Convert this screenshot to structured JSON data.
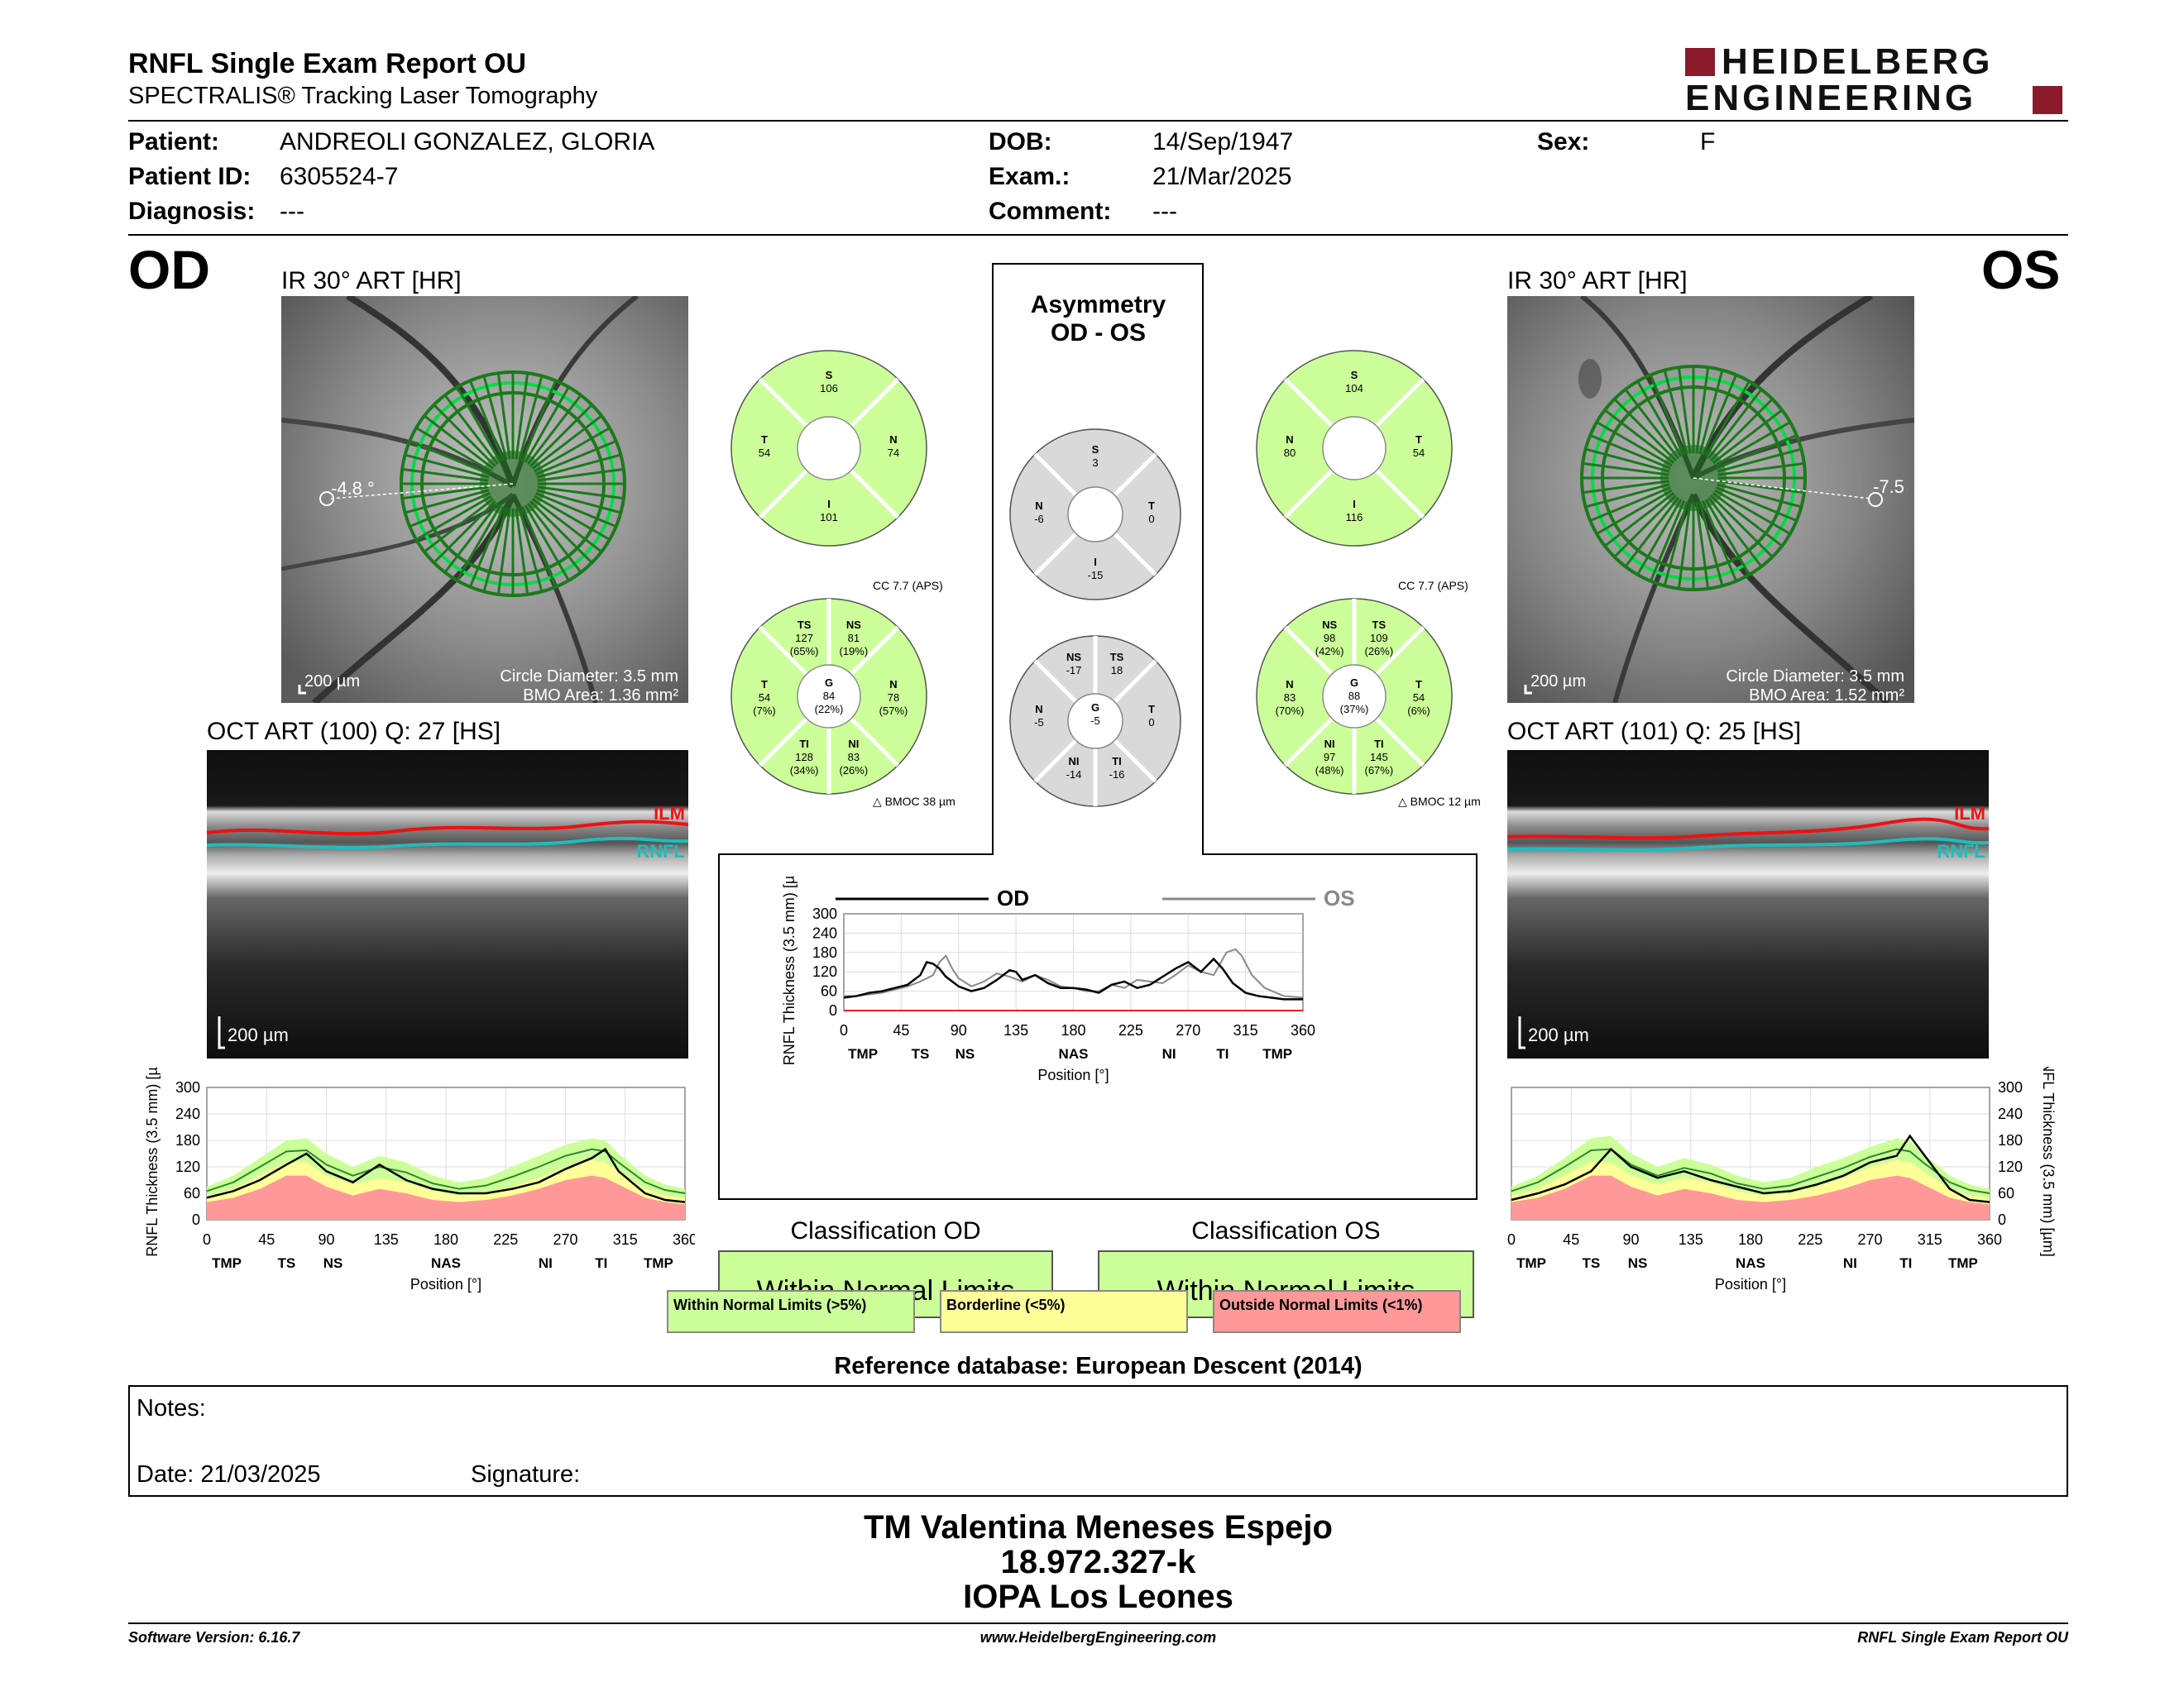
{
  "header": {
    "title": "RNFL Single Exam Report OU",
    "subtitle": "SPECTRALIS® Tracking Laser Tomography",
    "logo_line1": "HEIDELBERG",
    "logo_line2": "ENGINEERING",
    "logo_color": "#8b1a2b"
  },
  "patient": {
    "patient_label": "Patient:",
    "patient": "ANDREOLI GONZALEZ, GLORIA",
    "id_label": "Patient ID:",
    "id": "6305524-7",
    "diag_label": "Diagnosis:",
    "diag": "---",
    "dob_label": "DOB:",
    "dob": "14/Sep/1947",
    "exam_label": "Exam.:",
    "exam": "21/Mar/2025",
    "comment_label": "Comment:",
    "comment": "---",
    "sex_label": "Sex:",
    "sex": "F"
  },
  "od": {
    "eye": "OD",
    "ir_title": "IR 30° ART [HR]",
    "angle": "-4.8 °",
    "scale": "200 µm",
    "circle": "Circle Diameter: 3.5 mm",
    "bmo": "BMO Area: 1.36 mm²",
    "oct_title": "OCT ART (100) Q: 27 [HS]",
    "oct_scale": "200 µm",
    "ilm": "ILM",
    "rnfl": "RNFL",
    "cc": "CC 7.7 (APS)",
    "bmoc": "BMOC 38 µm",
    "sectors4": {
      "S": "106",
      "T": "54",
      "N": "74",
      "I": "101"
    },
    "sectors6": {
      "TS": "127",
      "TS_p": "(65%)",
      "NS": "81",
      "NS_p": "(19%)",
      "T": "54",
      "T_p": "(7%)",
      "G": "84",
      "G_p": "(22%)",
      "N": "78",
      "N_p": "(57%)",
      "TI": "128",
      "TI_p": "(34%)",
      "NI": "83",
      "NI_p": "(26%)"
    },
    "classification_title": "Classification OD",
    "classification": "Within Normal Limits"
  },
  "os": {
    "eye": "OS",
    "ir_title": "IR 30° ART [HR]",
    "angle": "-7.5",
    "scale": "200 µm",
    "circle": "Circle Diameter: 3.5 mm",
    "bmo": "BMO Area: 1.52 mm²",
    "oct_title": "OCT ART (101) Q: 25 [HS]",
    "oct_scale": "200 µm",
    "ilm": "ILM",
    "rnfl": "RNFL",
    "cc": "CC 7.7 (APS)",
    "bmoc": "BMOC 12 µm",
    "sectors4": {
      "S": "104",
      "N": "80",
      "T": "54",
      "I": "116"
    },
    "sectors6": {
      "NS": "98",
      "NS_p": "(42%)",
      "TS": "109",
      "TS_p": "(26%)",
      "N": "83",
      "N_p": "(70%)",
      "G": "88",
      "G_p": "(37%)",
      "T": "54",
      "T_p": "(6%)",
      "NI": "97",
      "NI_p": "(48%)",
      "TI": "145",
      "TI_p": "(67%)"
    },
    "classification_title": "Classification OS",
    "classification": "Within Normal Limits"
  },
  "asym": {
    "title1": "Asymmetry",
    "title2": "OD - OS",
    "sectors4": {
      "S": "3",
      "N": "-6",
      "T": "0",
      "I": "-15"
    },
    "sectors6": {
      "NS": "-17",
      "TS": "18",
      "N": "-5",
      "G": "-5",
      "T": "0",
      "NI": "-14",
      "TI": "-16"
    }
  },
  "sector_letters": {
    "S": "S",
    "T": "T",
    "N": "N",
    "I": "I",
    "TS": "TS",
    "NS": "NS",
    "G": "G",
    "TI": "TI",
    "NI": "NI"
  },
  "legend": {
    "od": "OD",
    "os": "OS",
    "wnl": "Within Normal Limits (>5%)",
    "bl": "Borderline (<5%)",
    "onl": "Outside Normal Limits (<1%)"
  },
  "colors": {
    "green": "#ccff99",
    "yellow": "#ffff99",
    "red": "#ff9999",
    "gray": "#d9d9d9",
    "fundus_ring": "#1a7a1a"
  },
  "chart_data": [
    {
      "type": "line",
      "title": "",
      "xlabel": "Position [°]",
      "ylabel": "RNFL Thickness (3.5 mm) [µm]",
      "x_ticks": [
        0,
        45,
        90,
        135,
        180,
        225,
        270,
        315,
        360
      ],
      "y_ticks": [
        0,
        60,
        120,
        180,
        240,
        300
      ],
      "xlim": [
        0,
        360
      ],
      "ylim": [
        0,
        300
      ],
      "sector_labels": [
        {
          "x": 15,
          "label": "TMP"
        },
        {
          "x": 60,
          "label": "TS"
        },
        {
          "x": 95,
          "label": "NS"
        },
        {
          "x": 180,
          "label": "NAS"
        },
        {
          "x": 255,
          "label": "NI"
        },
        {
          "x": 297,
          "label": "TI"
        },
        {
          "x": 340,
          "label": "TMP"
        }
      ],
      "series": [
        {
          "name": "OD",
          "x": [
            0,
            10,
            20,
            30,
            40,
            50,
            60,
            65,
            70,
            75,
            80,
            90,
            100,
            110,
            120,
            130,
            135,
            140,
            150,
            160,
            170,
            180,
            190,
            200,
            210,
            220,
            230,
            240,
            250,
            260,
            270,
            280,
            290,
            297,
            305,
            315,
            325,
            335,
            345,
            360
          ],
          "values": [
            40,
            45,
            55,
            60,
            70,
            80,
            110,
            150,
            145,
            130,
            105,
            75,
            60,
            70,
            95,
            125,
            120,
            95,
            110,
            85,
            70,
            70,
            65,
            55,
            80,
            90,
            70,
            80,
            105,
            130,
            150,
            120,
            160,
            130,
            85,
            55,
            45,
            40,
            35,
            35
          ]
        },
        {
          "name": "OS",
          "x": [
            0,
            10,
            20,
            30,
            40,
            50,
            60,
            70,
            75,
            80,
            85,
            90,
            100,
            110,
            120,
            130,
            140,
            150,
            160,
            170,
            180,
            190,
            200,
            210,
            220,
            230,
            240,
            250,
            260,
            270,
            280,
            290,
            300,
            307,
            312,
            320,
            330,
            345,
            360
          ],
          "values": [
            45,
            45,
            50,
            55,
            65,
            75,
            90,
            110,
            150,
            170,
            130,
            100,
            75,
            90,
            115,
            105,
            90,
            110,
            95,
            75,
            70,
            60,
            60,
            80,
            70,
            95,
            90,
            85,
            110,
            140,
            120,
            110,
            180,
            190,
            170,
            110,
            70,
            45,
            40
          ]
        }
      ]
    },
    {
      "type": "area",
      "title": "",
      "xlabel": "Position [°]",
      "ylabel": "RNFL Thickness (3.5 mm) [µm]",
      "x_ticks": [
        0,
        45,
        90,
        135,
        180,
        225,
        270,
        315,
        360
      ],
      "y_ticks": [
        0,
        60,
        120,
        180,
        240,
        300
      ],
      "xlim": [
        0,
        360
      ],
      "ylim": [
        0,
        300
      ],
      "sector_labels": [
        {
          "x": 15,
          "label": "TMP"
        },
        {
          "x": 60,
          "label": "TS"
        },
        {
          "x": 95,
          "label": "NS"
        },
        {
          "x": 180,
          "label": "NAS"
        },
        {
          "x": 255,
          "label": "NI"
        },
        {
          "x": 297,
          "label": "TI"
        },
        {
          "x": 340,
          "label": "TMP"
        }
      ],
      "x": [
        0,
        20,
        40,
        60,
        75,
        90,
        110,
        130,
        150,
        170,
        190,
        210,
        230,
        250,
        270,
        290,
        300,
        310,
        330,
        345,
        360
      ],
      "series": [
        {
          "name": "OD",
          "values": [
            50,
            65,
            90,
            125,
            150,
            110,
            85,
            125,
            90,
            70,
            60,
            60,
            70,
            85,
            115,
            140,
            160,
            110,
            60,
            45,
            40
          ]
        }
      ],
      "normal_band": {
        "green_top": [
          75,
          100,
          140,
          180,
          185,
          150,
          120,
          145,
          130,
          100,
          85,
          95,
          120,
          145,
          170,
          185,
          180,
          150,
          100,
          80,
          70
        ],
        "yellow_top": [
          55,
          70,
          100,
          130,
          130,
          100,
          80,
          95,
          85,
          65,
          55,
          60,
          75,
          95,
          120,
          135,
          130,
          110,
          70,
          55,
          50
        ],
        "red_top": [
          40,
          50,
          70,
          100,
          100,
          75,
          55,
          70,
          60,
          45,
          40,
          45,
          55,
          70,
          90,
          100,
          95,
          80,
          50,
          40,
          35
        ]
      }
    },
    {
      "type": "area",
      "title": "",
      "xlabel": "Position [°]",
      "ylabel": "RNFL Thickness (3.5 mm) [µm]",
      "x_ticks": [
        0,
        45,
        90,
        135,
        180,
        225,
        270,
        315,
        360
      ],
      "y_ticks": [
        0,
        60,
        120,
        180,
        240,
        300
      ],
      "xlim": [
        0,
        360
      ],
      "ylim": [
        0,
        300
      ],
      "sector_labels": [
        {
          "x": 15,
          "label": "TMP"
        },
        {
          "x": 60,
          "label": "TS"
        },
        {
          "x": 95,
          "label": "NS"
        },
        {
          "x": 180,
          "label": "NAS"
        },
        {
          "x": 255,
          "label": "NI"
        },
        {
          "x": 297,
          "label": "TI"
        },
        {
          "x": 340,
          "label": "TMP"
        }
      ],
      "x": [
        0,
        20,
        40,
        60,
        75,
        90,
        110,
        130,
        150,
        170,
        190,
        210,
        230,
        250,
        270,
        290,
        300,
        310,
        330,
        345,
        360
      ],
      "series": [
        {
          "name": "OS",
          "values": [
            45,
            60,
            80,
            110,
            160,
            120,
            95,
            110,
            90,
            75,
            60,
            65,
            80,
            100,
            130,
            145,
            190,
            150,
            70,
            45,
            40
          ]
        }
      ],
      "normal_band": {
        "green_top": [
          75,
          100,
          140,
          185,
          190,
          150,
          120,
          140,
          125,
          100,
          85,
          95,
          120,
          140,
          165,
          185,
          180,
          150,
          100,
          80,
          70
        ],
        "yellow_top": [
          55,
          70,
          100,
          130,
          130,
          100,
          80,
          95,
          85,
          65,
          55,
          60,
          75,
          95,
          120,
          135,
          130,
          110,
          70,
          55,
          50
        ],
        "red_top": [
          40,
          50,
          70,
          100,
          100,
          75,
          55,
          70,
          60,
          45,
          40,
          45,
          55,
          70,
          90,
          100,
          95,
          80,
          50,
          40,
          35
        ]
      }
    }
  ],
  "notes": {
    "label": "Notes:",
    "date": "Date: 21/03/2025",
    "signature": "Signature:"
  },
  "refdb": "Reference database: European Descent (2014)",
  "signer": {
    "name": "TM Valentina Meneses Espejo",
    "id": "18.972.327-k",
    "place": "IOPA Los Leones"
  },
  "footer": {
    "version": "Software Version: 6.16.7",
    "url": "www.HeidelbergEngineering.com",
    "report": "RNFL Single Exam Report OU"
  }
}
